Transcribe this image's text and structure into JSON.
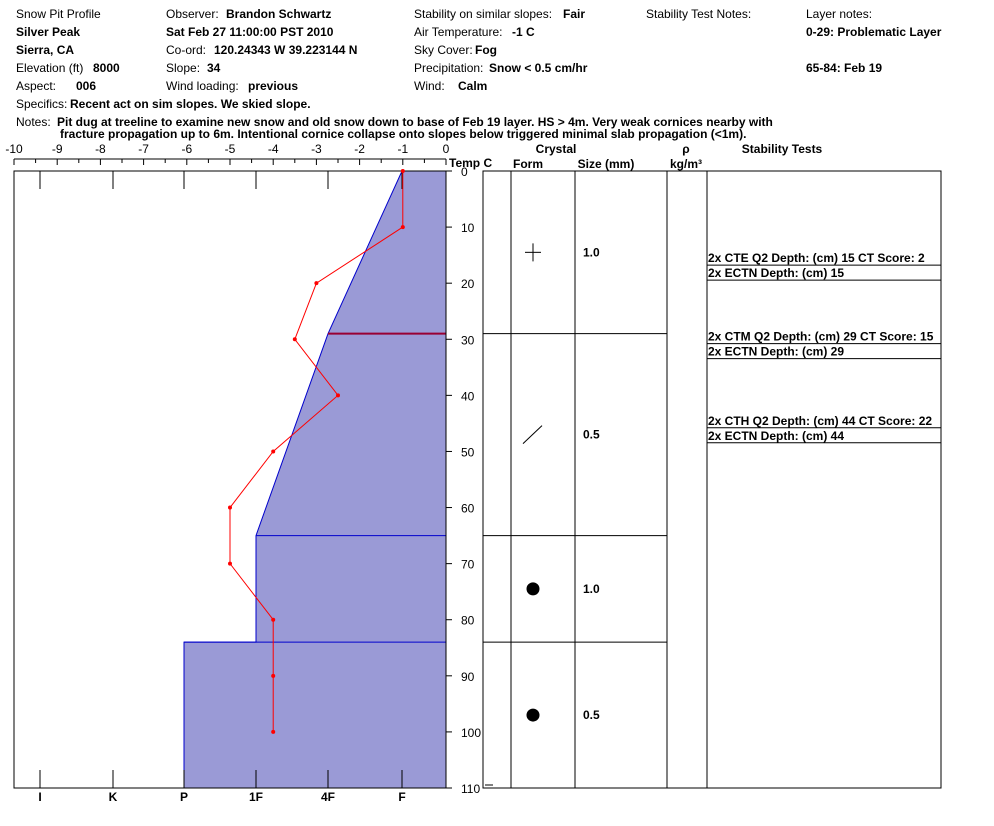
{
  "header": {
    "profile_title": "Snow Pit Profile",
    "location_name": "Silver Peak",
    "region": "Sierra, CA",
    "elevation_label": "Elevation (ft)",
    "elevation_value": "8000",
    "aspect_label": "Aspect:",
    "aspect_value": "006",
    "specifics_label": "Specifics:",
    "specifics_value": "Recent act on sim slopes. We skied slope.",
    "observer_label": "Observer:",
    "observer_value": "Brandon Schwartz",
    "date": "Sat Feb 27 11:00:00 PST 2010",
    "coord_label": "Co-ord:",
    "coord_value": "120.24343 W 39.223144 N",
    "slope_label": "Slope:",
    "slope_value": "34",
    "wind_loading_label": "Wind loading:",
    "wind_loading_value": "previous",
    "stability_label": "Stability on similar slopes:",
    "stability_value": "Fair",
    "air_temp_label": "Air Temperature:",
    "air_temp_value": "-1 C",
    "sky_label": "Sky Cover:",
    "sky_value": "Fog",
    "precip_label": "Precipitation:",
    "precip_value": "Snow < 0.5 cm/hr",
    "wind_label": "Wind:",
    "wind_value": "Calm",
    "stability_test_notes_label": "Stability Test Notes:",
    "layer_notes_label": "Layer notes:",
    "layer_note_1": "0-29: Problematic Layer",
    "layer_note_2": "65-84: Feb 19",
    "notes_label": "Notes:",
    "notes_line1": "Pit dug at treeline to examine new snow and old snow down to base of Feb 19 layer. HS > 4m. Very weak cornices nearby with",
    "notes_line2": "fracture propagation up to 6m.  Intentional cornice collapse onto slopes below triggered minimal slab propagation (<1m)."
  },
  "chart_data": {
    "type": "snow-profile",
    "temp_axis": {
      "label": "Temp C",
      "range": [
        -10,
        0
      ],
      "ticks": [
        "-10",
        "-9",
        "-8",
        "-7",
        "-6",
        "-5",
        "-4",
        "-3",
        "-2",
        "-1",
        "0"
      ]
    },
    "depth_axis": {
      "range": [
        0,
        110
      ],
      "ticks": [
        "0",
        "10",
        "20",
        "30",
        "40",
        "50",
        "60",
        "70",
        "80",
        "90",
        "100",
        "110"
      ]
    },
    "hardness_axis": {
      "labels": [
        "I",
        "K",
        "P",
        "1F",
        "4F",
        "F"
      ]
    },
    "temperature_profile": [
      {
        "depth": 0,
        "temp": -1
      },
      {
        "depth": 10,
        "temp": -1
      },
      {
        "depth": 20,
        "temp": -3
      },
      {
        "depth": 30,
        "temp": -3.5
      },
      {
        "depth": 40,
        "temp": -2.5
      },
      {
        "depth": 50,
        "temp": -4
      },
      {
        "depth": 60,
        "temp": -5
      },
      {
        "depth": 70,
        "temp": -5
      },
      {
        "depth": 80,
        "temp": -4
      },
      {
        "depth": 90,
        "temp": -4
      },
      {
        "depth": 100,
        "temp": -4
      }
    ],
    "hardness_profile": [
      {
        "depth_top": 0,
        "depth_bottom": 29,
        "hardness_top": "F",
        "hardness_bottom": "4F"
      },
      {
        "depth_top": 29,
        "depth_bottom": 65,
        "hardness_top": "4F",
        "hardness_bottom": "1F"
      },
      {
        "depth_top": 65,
        "depth_bottom": 84,
        "hardness": "1F"
      },
      {
        "depth_top": 84,
        "depth_bottom": 110,
        "hardness": "P"
      }
    ],
    "column_headers": {
      "crystal": "Crystal",
      "form": "Form",
      "size": "Size (mm)",
      "rho": "ρ",
      "density_unit": "kg/m³",
      "stability_tests": "Stability Tests"
    },
    "layers": [
      {
        "top": 0,
        "bottom": 29,
        "form_symbol": "plus",
        "size": "1.0"
      },
      {
        "top": 29,
        "bottom": 65,
        "form_symbol": "slash",
        "size": "0.5"
      },
      {
        "top": 65,
        "bottom": 84,
        "form_symbol": "dot",
        "size": "1.0"
      },
      {
        "top": 84,
        "bottom": 110,
        "form_symbol": "dot",
        "size": "0.5"
      }
    ],
    "stability_tests": [
      {
        "depth": 15,
        "text": "2x CTE Q2 Depth: (cm) 15 CT Score: 2"
      },
      {
        "depth": 15,
        "text": "2x ECTN  Depth: (cm) 15"
      },
      {
        "depth": 29,
        "text": "2x CTM Q2 Depth: (cm) 29 CT Score: 15"
      },
      {
        "depth": 29,
        "text": "2x ECTN  Depth: (cm) 29"
      },
      {
        "depth": 44,
        "text": "2x CTH Q2 Depth: (cm) 44 CT Score: 22"
      },
      {
        "depth": 44,
        "text": "2x ECTN  Depth: (cm) 44"
      }
    ],
    "colors": {
      "hardness_fill": "#9a9ad6",
      "hardness_stroke": "#0000cc",
      "temp_line": "#ff0000",
      "critical_layer": "#990033"
    }
  }
}
